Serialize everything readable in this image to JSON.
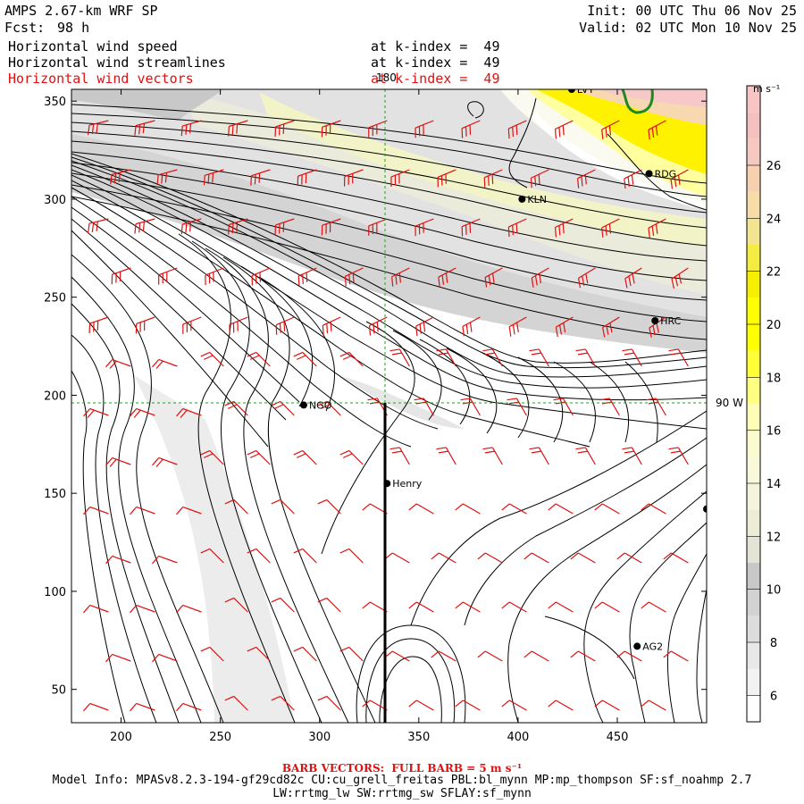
{
  "header": {
    "model_title": "AMPS 2.67-km WRF SP",
    "forecast_label": "Fcst:",
    "forecast_value": "98 h",
    "init_time": "Init: 00 UTC Thu 06 Nov 25",
    "valid_time": "Valid: 02 UTC Mon 10 Nov 25"
  },
  "fields": [
    {
      "name": "Horizontal wind speed",
      "level": "at k-index =  49",
      "color": "#000000"
    },
    {
      "name": "Horizontal wind streamlines",
      "level": "at k-index =  49",
      "color": "#000000"
    },
    {
      "name": "Horizontal wind vectors",
      "level": "at k-index =  49",
      "color": "#e01010"
    }
  ],
  "map": {
    "x_axis": {
      "range": [
        175,
        495
      ],
      "ticks": [
        "200",
        "250",
        "300",
        "350",
        "400",
        "450"
      ]
    },
    "y_axis": {
      "range": [
        33,
        356
      ],
      "ticks": [
        "50",
        "100",
        "150",
        "200",
        "250",
        "300",
        "350"
      ]
    },
    "meridian_label": "180",
    "parallel_label": "90 W",
    "stations": [
      {
        "id": "LVT",
        "label": "LVT",
        "x": 427,
        "y": 356
      },
      {
        "id": "RDG",
        "label": "RDG",
        "x": 466,
        "y": 313
      },
      {
        "id": "KLN",
        "label": "KLN",
        "x": 402,
        "y": 300
      },
      {
        "id": "HRC",
        "label": "HRC",
        "x": 469,
        "y": 238
      },
      {
        "id": "NGO",
        "label": "NGO",
        "x": 292,
        "y": 195
      },
      {
        "id": "Henry",
        "label": "Henry",
        "x": 334,
        "y": 155
      },
      {
        "id": "EDGE",
        "label": "",
        "x": 495,
        "y": 142
      },
      {
        "id": "AG2",
        "label": "AG2",
        "x": 460,
        "y": 72
      }
    ]
  },
  "colorbar": {
    "units": "m s⁻¹",
    "labels": [
      "6",
      "8",
      "10",
      "12",
      "14",
      "16",
      "18",
      "20",
      "22",
      "24",
      "26"
    ],
    "bins": [
      {
        "from": 5,
        "to": 6,
        "color": "#ffffff"
      },
      {
        "from": 6,
        "to": 7,
        "color": "#f2f2f2"
      },
      {
        "from": 7,
        "to": 8,
        "color": "#e8e8e8"
      },
      {
        "from": 8,
        "to": 9,
        "color": "#dcdcdc"
      },
      {
        "from": 9,
        "to": 10,
        "color": "#d2d2d2"
      },
      {
        "from": 10,
        "to": 11,
        "color": "#c8c8c8"
      },
      {
        "from": 11,
        "to": 12,
        "color": "#e4e4d6"
      },
      {
        "from": 12,
        "to": 13,
        "color": "#ededd6"
      },
      {
        "from": 13,
        "to": 14,
        "color": "#f4f4dc"
      },
      {
        "from": 14,
        "to": 15,
        "color": "#f8f8da"
      },
      {
        "from": 15,
        "to": 16,
        "color": "#fbfbd0"
      },
      {
        "from": 16,
        "to": 17,
        "color": "#fdfdb8"
      },
      {
        "from": 17,
        "to": 18,
        "color": "#fefe80"
      },
      {
        "from": 18,
        "to": 19,
        "color": "#ffff38"
      },
      {
        "from": 19,
        "to": 20,
        "color": "#ffff00"
      },
      {
        "from": 20,
        "to": 21,
        "color": "#ffff00"
      },
      {
        "from": 21,
        "to": 22,
        "color": "#f7ef00"
      },
      {
        "from": 22,
        "to": 23,
        "color": "#f4ec40"
      },
      {
        "from": 23,
        "to": 24,
        "color": "#f2e490"
      },
      {
        "from": 24,
        "to": 25,
        "color": "#f7dca8"
      },
      {
        "from": 25,
        "to": 26,
        "color": "#f7d0b0"
      },
      {
        "from": 26,
        "to": 27,
        "color": "#f5c8c0"
      },
      {
        "from": 27,
        "to": 28,
        "color": "#f5c0c0"
      },
      {
        "from": 28,
        "to": 29,
        "color": "#f8c4c4"
      }
    ]
  },
  "footer": {
    "barb_note": "BARB VECTORS:  FULL BARB = 5 m s⁻¹",
    "model_info_1": "Model Info: MPASv8.2.3-194-gf29cd82c CU:cu_grell_freitas PBL:bl_mynn MP:mp_thompson SF:sf_noahmp 2.7",
    "model_info_2": "LW:rrtmg_lw SW:rrtmg_sw SFLAY:sf_mynn"
  },
  "colors": {
    "barb": "#e01010",
    "streamline": "#000000",
    "grid": "#2a9a2a",
    "coast": "#1e8a1e"
  }
}
